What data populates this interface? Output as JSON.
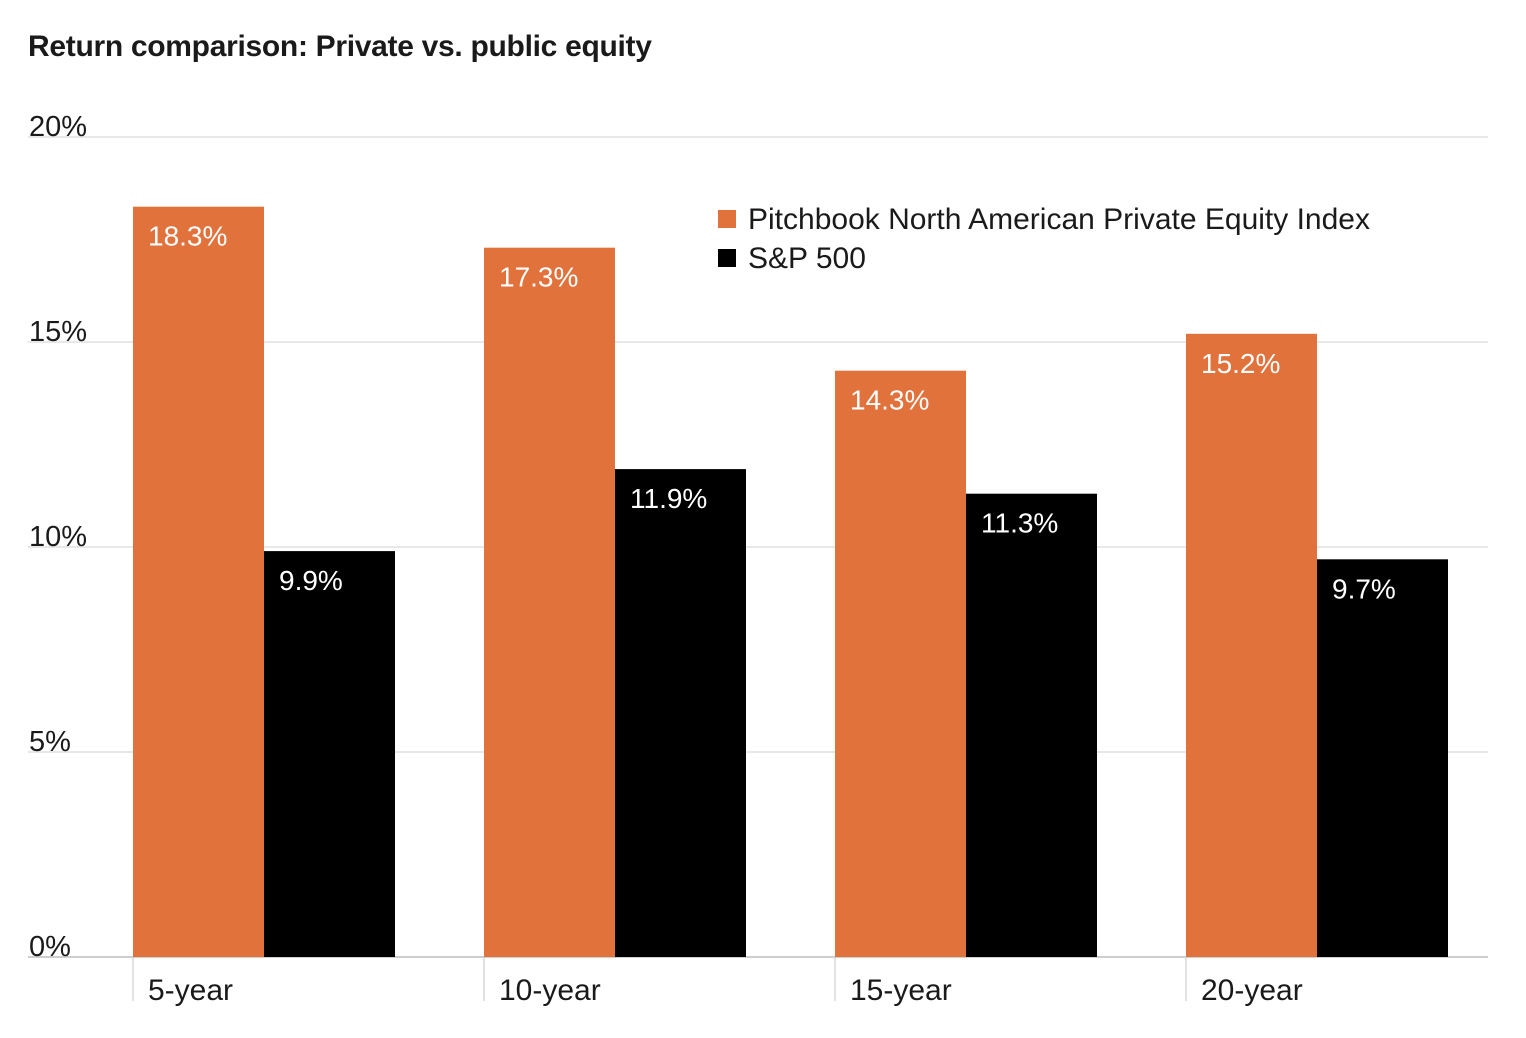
{
  "chart_data": {
    "type": "bar",
    "title": "Return comparison: Private vs. public equity",
    "categories": [
      "5-year",
      "10-year",
      "15-year",
      "20-year"
    ],
    "series": [
      {
        "name": "Pitchbook North American Private Equity Index",
        "color": "#E1723C",
        "values": [
          18.3,
          17.3,
          14.3,
          15.2
        ],
        "labels": [
          "18.3%",
          "17.3%",
          "14.3%",
          "15.2%"
        ]
      },
      {
        "name": "S&P 500",
        "color": "#000000",
        "values": [
          9.9,
          11.9,
          11.3,
          9.7
        ],
        "labels": [
          "9.9%",
          "11.9%",
          "11.3%",
          "9.7%"
        ]
      }
    ],
    "ylim": [
      0,
      20
    ],
    "yticks": [
      0,
      5,
      10,
      15,
      20
    ],
    "ytick_labels": [
      "0%",
      "5%",
      "10%",
      "15%",
      "20%"
    ],
    "xlabel": "",
    "ylabel": "",
    "grid": true,
    "legend_position": "top-right"
  }
}
